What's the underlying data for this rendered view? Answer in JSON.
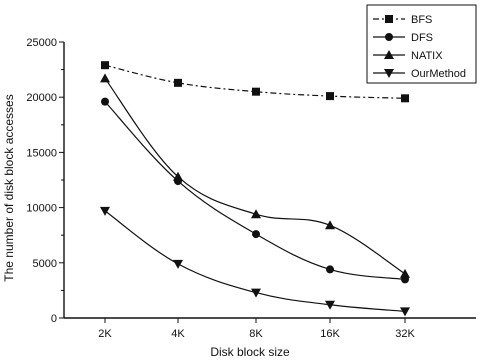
{
  "chart_data": {
    "type": "line",
    "categories": [
      "2K",
      "4K",
      "8K",
      "16K",
      "32K"
    ],
    "series": [
      {
        "name": "BFS",
        "values": [
          22900,
          21300,
          20500,
          20100,
          19900
        ],
        "marker": "square",
        "dash": "6,3,2,3"
      },
      {
        "name": "DFS",
        "values": [
          19600,
          12400,
          7600,
          4400,
          3500
        ],
        "marker": "circle",
        "dash": ""
      },
      {
        "name": "NATIX",
        "values": [
          21700,
          12800,
          9400,
          8400,
          4000
        ],
        "marker": "triangle-up",
        "dash": ""
      },
      {
        "name": "OurMethod",
        "values": [
          9700,
          4900,
          2300,
          1200,
          600
        ],
        "marker": "triangle-down",
        "dash": ""
      }
    ],
    "title": "",
    "xlabel": "Disk block size",
    "ylabel": "The number of disk block accesses",
    "ylim": [
      0,
      25000
    ],
    "yticks": [
      "0",
      "5000",
      "10000",
      "15000",
      "20000",
      "25000"
    ],
    "grid": false,
    "legend_position": "top-right",
    "colors": {
      "line": "#111111",
      "background": "#ffffff"
    }
  }
}
